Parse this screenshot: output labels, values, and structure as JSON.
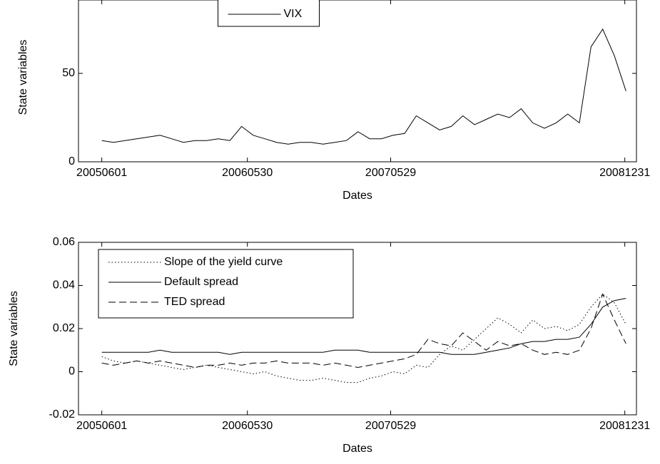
{
  "chart_data": [
    {
      "type": "line",
      "xlabel": "Dates",
      "ylabel": "State variables",
      "x": [
        0,
        20,
        40,
        60,
        80,
        100,
        120,
        140,
        160,
        180,
        200,
        220,
        240,
        260,
        280,
        300,
        320,
        340,
        360,
        380,
        400,
        420,
        440,
        460,
        480,
        500,
        520,
        540,
        560,
        580,
        600,
        620,
        640,
        660,
        680,
        700,
        720,
        740,
        760,
        780,
        800,
        820,
        840,
        860,
        880,
        900
      ],
      "xlim": [
        -40,
        918
      ],
      "xticks": [
        {
          "value": 0,
          "label": "20050601"
        },
        {
          "value": 250,
          "label": "20060530"
        },
        {
          "value": 496,
          "label": "20070529"
        },
        {
          "value": 898,
          "label": "20081231"
        }
      ],
      "ylim": [
        0,
        91.5
      ],
      "yticks": [
        0,
        50
      ],
      "legend": "upper center",
      "series": [
        {
          "name": "VIX",
          "color": "#000000",
          "style": "solid",
          "values": [
            12,
            11,
            12,
            13,
            14,
            15,
            13,
            11,
            12,
            12,
            13,
            12,
            20,
            15,
            13,
            11,
            10,
            11,
            11,
            10,
            11,
            12,
            17,
            13,
            13,
            15,
            16,
            26,
            22,
            18,
            20,
            26,
            21,
            24,
            27,
            25,
            30,
            22,
            19,
            22,
            27,
            22,
            65,
            75,
            60,
            40
          ]
        }
      ]
    },
    {
      "type": "line",
      "xlabel": "Dates",
      "ylabel": "State variables",
      "x": [
        0,
        20,
        40,
        60,
        80,
        100,
        120,
        140,
        160,
        180,
        200,
        220,
        240,
        260,
        280,
        300,
        320,
        340,
        360,
        380,
        400,
        420,
        440,
        460,
        480,
        500,
        520,
        540,
        560,
        580,
        600,
        620,
        640,
        660,
        680,
        700,
        720,
        740,
        760,
        780,
        800,
        820,
        840,
        860,
        880,
        900
      ],
      "xlim": [
        -40,
        918
      ],
      "xticks": [
        {
          "value": 0,
          "label": "20050601"
        },
        {
          "value": 250,
          "label": "20060530"
        },
        {
          "value": 496,
          "label": "20070529"
        },
        {
          "value": 898,
          "label": "20081231"
        }
      ],
      "ylim": [
        -0.02,
        0.06
      ],
      "yticks": [
        -0.02,
        0,
        0.02,
        0.04,
        0.06
      ],
      "legend": "upper left",
      "series": [
        {
          "name": "Slope of the yield curve",
          "color": "#000000",
          "style": "dotted",
          "values": [
            0.007,
            0.005,
            0.004,
            0.005,
            0.004,
            0.003,
            0.002,
            0.001,
            0.002,
            0.003,
            0.002,
            0.001,
            0.0,
            -0.001,
            0.0,
            -0.002,
            -0.003,
            -0.004,
            -0.004,
            -0.003,
            -0.004,
            -0.005,
            -0.005,
            -0.003,
            -0.002,
            0.0,
            -0.001,
            0.003,
            0.002,
            0.008,
            0.012,
            0.01,
            0.015,
            0.02,
            0.025,
            0.022,
            0.018,
            0.024,
            0.02,
            0.021,
            0.019,
            0.022,
            0.03,
            0.036,
            0.032,
            0.022
          ]
        },
        {
          "name": "Default spread",
          "color": "#000000",
          "style": "solid",
          "values": [
            0.009,
            0.009,
            0.009,
            0.009,
            0.009,
            0.01,
            0.009,
            0.009,
            0.009,
            0.009,
            0.009,
            0.008,
            0.009,
            0.009,
            0.009,
            0.009,
            0.009,
            0.009,
            0.009,
            0.009,
            0.01,
            0.01,
            0.01,
            0.009,
            0.009,
            0.009,
            0.009,
            0.009,
            0.009,
            0.009,
            0.008,
            0.008,
            0.008,
            0.009,
            0.01,
            0.011,
            0.013,
            0.014,
            0.014,
            0.015,
            0.015,
            0.016,
            0.022,
            0.03,
            0.033,
            0.034
          ]
        },
        {
          "name": "TED spread",
          "color": "#000000",
          "style": "dashed",
          "values": [
            0.004,
            0.003,
            0.004,
            0.005,
            0.004,
            0.005,
            0.004,
            0.003,
            0.002,
            0.003,
            0.003,
            0.004,
            0.003,
            0.004,
            0.004,
            0.005,
            0.004,
            0.004,
            0.004,
            0.003,
            0.004,
            0.003,
            0.002,
            0.003,
            0.004,
            0.005,
            0.006,
            0.008,
            0.015,
            0.013,
            0.012,
            0.018,
            0.014,
            0.01,
            0.014,
            0.012,
            0.013,
            0.01,
            0.008,
            0.009,
            0.008,
            0.01,
            0.02,
            0.036,
            0.024,
            0.013
          ]
        }
      ]
    }
  ]
}
